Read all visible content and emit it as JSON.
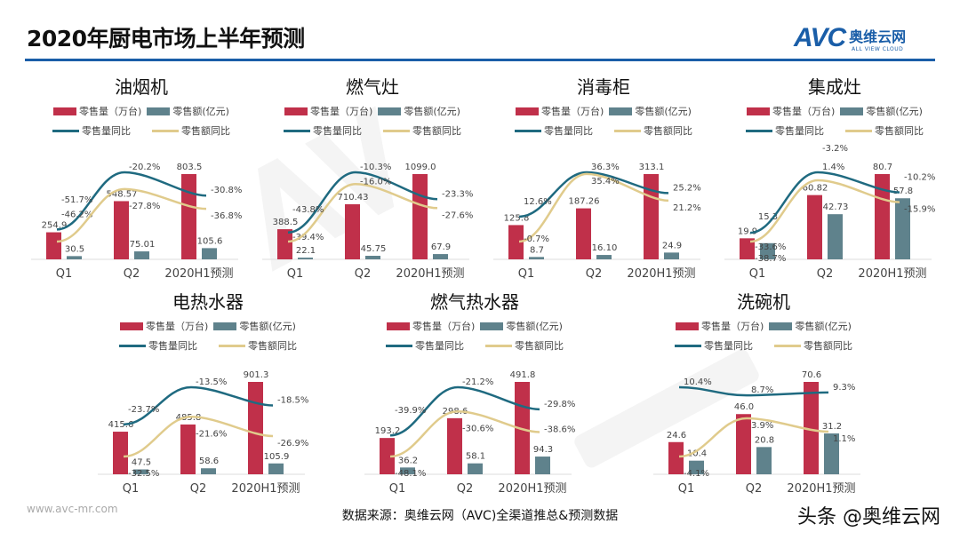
{
  "header": {
    "title": "2020年厨电市场上半年预测",
    "logo_text": "AVC",
    "logo_cn": "奥维云网",
    "logo_en": "ALL VIEW CLOUD"
  },
  "legend": {
    "volume": "零售量（万台)",
    "amount": "零售额(亿元)",
    "volume_yoy": "零售量同比",
    "amount_yoy": "零售额同比"
  },
  "colors": {
    "volume": "#c0304a",
    "amount": "#5f828c",
    "volume_yoy": "#1f6a80",
    "amount_yoy": "#e0cb8c",
    "accent": "#1a5ea8"
  },
  "watermark": "AVC 奥维云网 ALL VIEW CLOUD",
  "chart_data": [
    {
      "type": "bar",
      "title": "油烟机",
      "categories": [
        "Q1",
        "Q2",
        "2020H1预测"
      ],
      "series": [
        {
          "name": "零售量（万台)",
          "values": [
            254.9,
            548.57,
            803.5
          ],
          "labels": [
            "254.9",
            "548.57",
            "803.5"
          ]
        },
        {
          "name": "零售额(亿元)",
          "values": [
            30.5,
            75.01,
            105.6
          ],
          "labels": [
            "30.5",
            "75.01",
            "105.6"
          ]
        },
        {
          "name": "零售量同比",
          "values": [
            -46.2,
            -20.2,
            -30.8
          ],
          "labels": [
            "-46.2%",
            "-20.2%",
            "-30.8%"
          ]
        },
        {
          "name": "零售额同比",
          "values": [
            -51.7,
            -27.8,
            -36.8
          ],
          "labels": [
            "-51.7%",
            "-27.8%",
            "-36.8%"
          ]
        }
      ]
    },
    {
      "type": "bar",
      "title": "燃气灶",
      "categories": [
        "Q1",
        "Q2",
        "2020H1预测"
      ],
      "series": [
        {
          "name": "零售量（万台)",
          "values": [
            388.5,
            710.43,
            1099.0
          ],
          "labels": [
            "388.5",
            "710.43",
            "1099.0"
          ]
        },
        {
          "name": "零售额(亿元)",
          "values": [
            22.1,
            45.75,
            67.9
          ],
          "labels": [
            "22.1",
            "45.75",
            "67.9"
          ]
        },
        {
          "name": "零售量同比",
          "values": [
            -39.4,
            -10.3,
            -23.3
          ],
          "labels": [
            "-39.4%",
            "-10.3%",
            "-23.3%"
          ]
        },
        {
          "name": "零售额同比",
          "values": [
            -43.8,
            -16.0,
            -27.6
          ],
          "labels": [
            "-43.8%",
            "-16.0%",
            "-27.6%"
          ]
        }
      ]
    },
    {
      "type": "bar",
      "title": "消毒柜",
      "categories": [
        "Q1",
        "Q2",
        "2020H1预测"
      ],
      "series": [
        {
          "name": "零售量（万台)",
          "values": [
            125.8,
            187.26,
            313.1
          ],
          "labels": [
            "125.8",
            "187.26",
            "313.1"
          ]
        },
        {
          "name": "零售额(亿元)",
          "values": [
            8.7,
            16.1,
            24.9
          ],
          "labels": [
            "8.7",
            "16.10",
            "24.9"
          ]
        },
        {
          "name": "零售量同比",
          "values": [
            12.6,
            36.3,
            25.2
          ],
          "labels": [
            "12.6%",
            "36.3%",
            "25.2%"
          ]
        },
        {
          "name": "零售额同比",
          "values": [
            -0.7,
            35.4,
            21.2
          ],
          "labels": [
            "-0.7%",
            "35.4%",
            "21.2%"
          ]
        }
      ]
    },
    {
      "type": "bar",
      "title": "集成灶",
      "categories": [
        "Q1",
        "Q2",
        "2020H1预测"
      ],
      "series": [
        {
          "name": "零售量（万台)",
          "values": [
            19.9,
            60.82,
            80.7
          ],
          "labels": [
            "19.9",
            "60.82",
            "80.7"
          ]
        },
        {
          "name": "零售额(亿元)",
          "values": [
            15.3,
            42.73,
            57.8
          ],
          "labels": [
            "15.3",
            "42.73",
            "57.8"
          ]
        },
        {
          "name": "零售量同比",
          "values": [
            -33.6,
            1.4,
            -10.2
          ],
          "labels": [
            "-33.6%",
            "1.4%",
            "-10.2%"
          ]
        },
        {
          "name": "零售额同比",
          "values": [
            -38.7,
            -3.2,
            -15.9
          ],
          "labels": [
            "-38.7%",
            "-3.2%",
            "-15.9%"
          ]
        }
      ]
    },
    {
      "type": "bar",
      "title": "电热水器",
      "categories": [
        "Q1",
        "Q2",
        "2020H1预测"
      ],
      "series": [
        {
          "name": "零售量（万台)",
          "values": [
            415.6,
            485.8,
            901.3
          ],
          "labels": [
            "415.6",
            "485.8",
            "901.3"
          ]
        },
        {
          "name": "零售额(亿元)",
          "values": [
            47.5,
            58.6,
            105.9
          ],
          "labels": [
            "47.5",
            "58.6",
            "105.9"
          ]
        },
        {
          "name": "零售量同比",
          "values": [
            -23.7,
            -13.5,
            -18.5
          ],
          "labels": [
            "-23.7%",
            "-13.5%",
            "-18.5%"
          ]
        },
        {
          "name": "零售额同比",
          "values": [
            -32.5,
            -21.6,
            -26.9
          ],
          "labels": [
            "-32.5%",
            "-21.6%",
            "-26.9%"
          ]
        }
      ]
    },
    {
      "type": "bar",
      "title": "燃气热水器",
      "categories": [
        "Q1",
        "Q2",
        "2020H1预测"
      ],
      "series": [
        {
          "name": "零售量（万台)",
          "values": [
            193.2,
            298.6,
            491.8
          ],
          "labels": [
            "193.2",
            "298.6",
            "491.8"
          ]
        },
        {
          "name": "零售额(亿元)",
          "values": [
            36.2,
            58.1,
            94.3
          ],
          "labels": [
            "36.2",
            "58.1",
            "94.3"
          ]
        },
        {
          "name": "零售量同比",
          "values": [
            -39.9,
            -21.2,
            -29.8
          ],
          "labels": [
            "-39.9%",
            "-21.2%",
            "-29.8%"
          ]
        },
        {
          "name": "零售额同比",
          "values": [
            -48.1,
            -30.6,
            -38.6
          ],
          "labels": [
            "-48.1%",
            "-30.6%",
            "-38.6%"
          ]
        }
      ]
    },
    {
      "type": "bar",
      "title": "洗碗机",
      "categories": [
        "Q1",
        "Q2",
        "2020H1预测"
      ],
      "series": [
        {
          "name": "零售量（万台)",
          "values": [
            24.6,
            46.0,
            70.6
          ],
          "labels": [
            "24.6",
            "46.0",
            "70.6"
          ]
        },
        {
          "name": "零售额(亿元)",
          "values": [
            10.4,
            20.8,
            31.2
          ],
          "labels": [
            "10.4",
            "20.8",
            "31.2"
          ]
        },
        {
          "name": "零售量同比",
          "values": [
            10.4,
            8.7,
            9.3
          ],
          "labels": [
            "10.4%",
            "8.7%",
            "9.3%"
          ]
        },
        {
          "name": "零售额同比",
          "values": [
            -4.1,
            3.9,
            1.1
          ],
          "labels": [
            "-4.1%",
            "3.9%",
            "1.1%"
          ]
        }
      ]
    }
  ],
  "footer": {
    "url": "www.avc-mr.com",
    "source": "数据来源：奥维云网（AVC)全渠道推总&预测数据",
    "brand": "头条 @奥维云网"
  }
}
